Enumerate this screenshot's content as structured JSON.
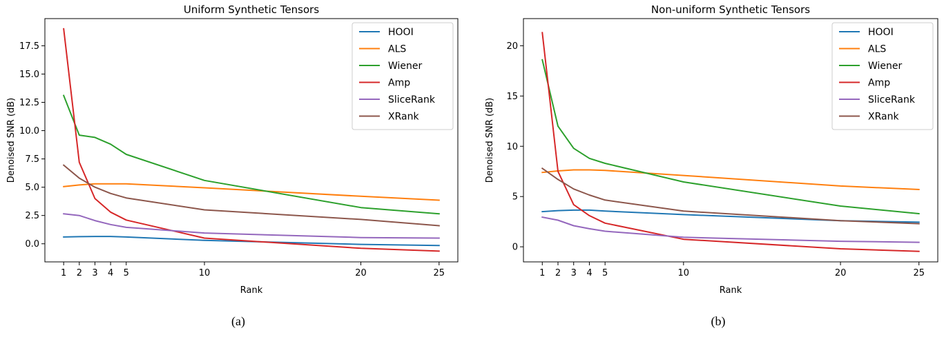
{
  "chart_data": [
    {
      "type": "line",
      "title": "Uniform Synthetic Tensors",
      "xlabel": "Rank",
      "ylabel": "Denoised SNR (dB)",
      "caption": "(a)",
      "x": [
        1,
        2,
        3,
        4,
        5,
        10,
        20,
        25
      ],
      "xticks": [
        1,
        2,
        3,
        4,
        5,
        10,
        20,
        25
      ],
      "xtick_labels": [
        "1",
        "2",
        "3",
        "4",
        "5",
        "10",
        "20",
        "25"
      ],
      "xlim": [
        -0.2,
        26.2
      ],
      "yticks": [
        0.0,
        2.5,
        5.0,
        7.5,
        10.0,
        12.5,
        15.0,
        17.5
      ],
      "ytick_labels": [
        "0.0",
        "2.5",
        "5.0",
        "7.5",
        "10.0",
        "12.5",
        "15.0",
        "17.5"
      ],
      "ylim": [
        -1.6,
        19.9
      ],
      "grid": false,
      "legend": "top-right",
      "series": [
        {
          "name": "HOOI",
          "color": "#1f77b4",
          "values": [
            0.6,
            0.63,
            0.65,
            0.65,
            0.6,
            0.3,
            -0.05,
            -0.15
          ]
        },
        {
          "name": "ALS",
          "color": "#ff7f0e",
          "values": [
            5.05,
            5.2,
            5.3,
            5.3,
            5.3,
            4.95,
            4.2,
            3.85
          ]
        },
        {
          "name": "Wiener",
          "color": "#2ca02c",
          "values": [
            13.1,
            9.6,
            9.4,
            8.8,
            7.9,
            5.6,
            3.2,
            2.65
          ]
        },
        {
          "name": "Amp",
          "color": "#d62728",
          "values": [
            19.0,
            7.2,
            4.0,
            2.8,
            2.1,
            0.5,
            -0.4,
            -0.65
          ]
        },
        {
          "name": "SliceRank",
          "color": "#9467bd",
          "values": [
            2.65,
            2.5,
            2.05,
            1.7,
            1.45,
            0.95,
            0.55,
            0.5
          ]
        },
        {
          "name": "XRank",
          "color": "#8c564b",
          "values": [
            6.95,
            5.8,
            5.0,
            4.45,
            4.05,
            3.0,
            2.15,
            1.6
          ]
        }
      ]
    },
    {
      "type": "line",
      "title": "Non-uniform Synthetic Tensors",
      "xlabel": "Rank",
      "ylabel": "Denoised SNR (dB)",
      "caption": "(b)",
      "x": [
        1,
        2,
        3,
        4,
        5,
        10,
        20,
        25
      ],
      "xticks": [
        1,
        2,
        3,
        4,
        5,
        10,
        20,
        25
      ],
      "xtick_labels": [
        "1",
        "2",
        "3",
        "4",
        "5",
        "10",
        "20",
        "25"
      ],
      "xlim": [
        -0.2,
        26.2
      ],
      "yticks": [
        0,
        5,
        10,
        15,
        20
      ],
      "ytick_labels": [
        "0",
        "5",
        "10",
        "15",
        "20"
      ],
      "ylim": [
        -1.5,
        22.7
      ],
      "grid": false,
      "legend": "top-right",
      "series": [
        {
          "name": "HOOI",
          "color": "#1f77b4",
          "values": [
            3.5,
            3.6,
            3.65,
            3.65,
            3.55,
            3.2,
            2.6,
            2.45
          ]
        },
        {
          "name": "ALS",
          "color": "#ff7f0e",
          "values": [
            7.4,
            7.55,
            7.65,
            7.65,
            7.6,
            7.1,
            6.05,
            5.7
          ]
        },
        {
          "name": "Wiener",
          "color": "#2ca02c",
          "values": [
            18.6,
            12.0,
            9.8,
            8.8,
            8.3,
            6.45,
            4.05,
            3.3
          ]
        },
        {
          "name": "Amp",
          "color": "#d62728",
          "values": [
            21.3,
            7.5,
            4.2,
            3.1,
            2.35,
            0.75,
            -0.2,
            -0.45
          ]
        },
        {
          "name": "SliceRank",
          "color": "#9467bd",
          "values": [
            2.95,
            2.65,
            2.1,
            1.8,
            1.55,
            0.95,
            0.55,
            0.45
          ]
        },
        {
          "name": "XRank",
          "color": "#8c564b",
          "values": [
            7.8,
            6.7,
            5.75,
            5.15,
            4.65,
            3.55,
            2.6,
            2.3
          ]
        }
      ]
    }
  ]
}
